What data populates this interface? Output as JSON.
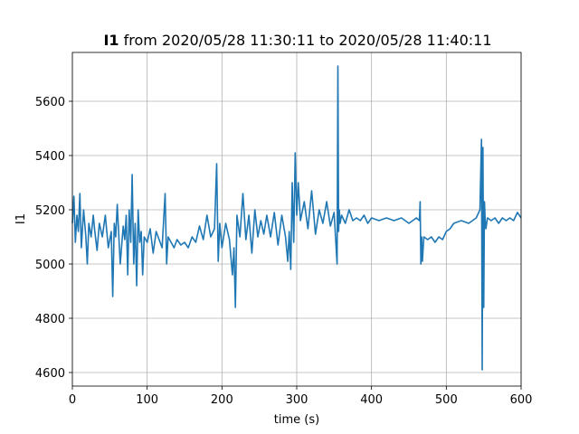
{
  "chart_data": {
    "type": "line",
    "title_prefix": "I1",
    "title_rest": " from 2020/05/28 11:30:11 to 2020/05/28 11:40:11",
    "xlabel": "time (s)",
    "ylabel": "I1",
    "xlim": [
      0,
      600
    ],
    "ylim": [
      4550,
      5780
    ],
    "xticks": [
      0,
      100,
      200,
      300,
      400,
      500,
      600
    ],
    "xtick_labels": [
      "0",
      "100",
      "200",
      "300",
      "400",
      "500",
      "600"
    ],
    "yticks": [
      4600,
      4800,
      5000,
      5200,
      5400,
      5600
    ],
    "ytick_labels": [
      "4600",
      "4800",
      "5000",
      "5200",
      "5400",
      "5600"
    ],
    "grid": true,
    "series": [
      {
        "color": "#1f77b4",
        "x": [
          0,
          2,
          4,
          6,
          8,
          10,
          12,
          15,
          18,
          20,
          22,
          25,
          28,
          30,
          33,
          36,
          40,
          44,
          48,
          52,
          54,
          56,
          58,
          60,
          64,
          68,
          70,
          72,
          74,
          76,
          78,
          80,
          82,
          84,
          86,
          88,
          90,
          92,
          94,
          96,
          100,
          104,
          108,
          112,
          116,
          120,
          124,
          126,
          128,
          132,
          136,
          140,
          145,
          150,
          155,
          160,
          165,
          170,
          175,
          180,
          185,
          190,
          193,
          195,
          197,
          200,
          205,
          210,
          214,
          216,
          218,
          220,
          224,
          228,
          232,
          236,
          240,
          244,
          248,
          252,
          256,
          260,
          265,
          270,
          275,
          280,
          285,
          288,
          290,
          292,
          294,
          296,
          298,
          300,
          302,
          305,
          310,
          315,
          320,
          325,
          330,
          335,
          340,
          345,
          350,
          354,
          355,
          356,
          357,
          358,
          360,
          365,
          370,
          375,
          380,
          385,
          390,
          395,
          400,
          410,
          420,
          430,
          440,
          450,
          460,
          464,
          465,
          466,
          467,
          468,
          470,
          475,
          480,
          485,
          490,
          495,
          500,
          505,
          510,
          520,
          530,
          540,
          545,
          547,
          548,
          549,
          550,
          551,
          552,
          553,
          555,
          560,
          565,
          570,
          575,
          580,
          585,
          590,
          595,
          600
        ],
        "y": [
          5150,
          5250,
          5080,
          5180,
          5120,
          5260,
          5060,
          5200,
          5100,
          5000,
          5150,
          5100,
          5180,
          5120,
          5050,
          5150,
          5100,
          5180,
          5060,
          5120,
          4880,
          5150,
          5100,
          5220,
          5000,
          5140,
          5090,
          5180,
          4960,
          5200,
          5080,
          5330,
          5000,
          5150,
          4920,
          5200,
          5080,
          5120,
          4960,
          5100,
          5080,
          5130,
          5040,
          5120,
          5090,
          5060,
          5260,
          5000,
          5100,
          5080,
          5060,
          5090,
          5070,
          5080,
          5060,
          5100,
          5080,
          5140,
          5090,
          5180,
          5100,
          5130,
          5370,
          5010,
          5150,
          5060,
          5150,
          5090,
          4960,
          5060,
          4840,
          5180,
          5100,
          5260,
          5090,
          5180,
          5040,
          5200,
          5100,
          5160,
          5110,
          5180,
          5100,
          5190,
          5070,
          5180,
          5100,
          5010,
          5120,
          4980,
          5300,
          5080,
          5410,
          5180,
          5300,
          5160,
          5230,
          5130,
          5270,
          5110,
          5200,
          5150,
          5230,
          5140,
          5190,
          5000,
          5730,
          5120,
          5200,
          5150,
          5180,
          5150,
          5200,
          5160,
          5170,
          5160,
          5180,
          5150,
          5170,
          5160,
          5170,
          5160,
          5170,
          5150,
          5170,
          5160,
          5230,
          5000,
          5100,
          5010,
          5100,
          5090,
          5100,
          5080,
          5100,
          5090,
          5120,
          5130,
          5150,
          5160,
          5150,
          5170,
          5200,
          5460,
          4610,
          5430,
          4840,
          5230,
          5160,
          5130,
          5170,
          5160,
          5170,
          5150,
          5170,
          5160,
          5170,
          5160,
          5190,
          5170
        ]
      }
    ]
  }
}
